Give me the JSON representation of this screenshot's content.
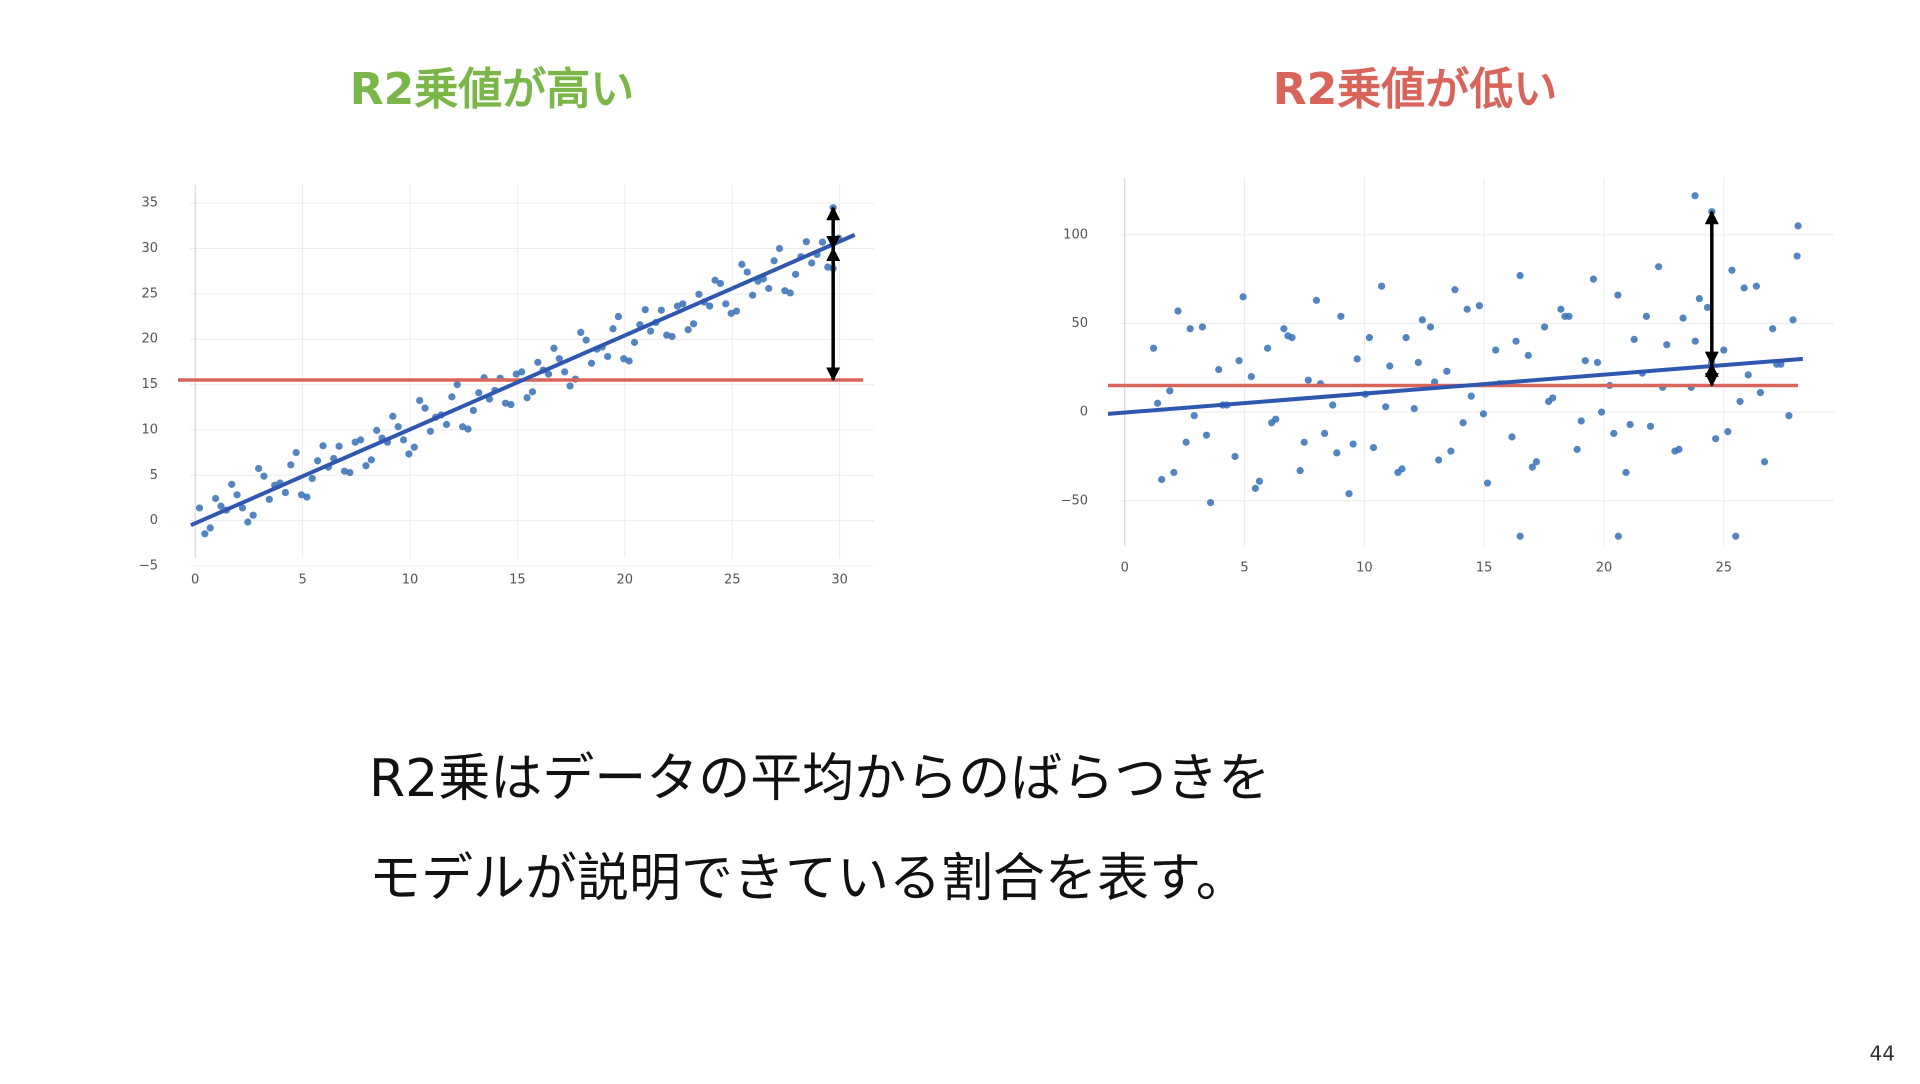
{
  "chart_data": [
    {
      "type": "scatter",
      "title": "R2乗値が高い",
      "title_color": "#7ab648",
      "x": [
        0.2,
        0.7,
        1.2,
        1.7,
        2.2,
        2.7,
        3.2,
        3.7,
        4.2,
        4.7,
        5.2,
        5.7,
        6.2,
        6.7,
        7.2,
        7.7,
        8.2,
        8.7,
        9.2,
        9.7,
        10.2,
        10.7,
        11.2,
        11.7,
        12.2,
        12.7,
        13.2,
        13.7,
        14.2,
        14.7,
        15.2,
        15.7,
        16.2,
        16.7,
        17.2,
        17.7,
        18.2,
        18.7,
        19.2,
        19.7,
        20.2,
        20.7,
        21.2,
        21.7,
        22.2,
        22.7,
        23.2,
        23.7,
        24.2,
        24.7,
        25.2,
        25.7,
        26.2,
        26.7,
        27.2,
        27.7,
        28.2,
        28.7,
        29.2,
        29.7,
        29.7,
        0.45,
        0.95,
        1.45,
        1.95,
        2.45,
        2.95,
        3.45,
        3.95,
        4.45,
        4.95,
        5.45,
        5.95,
        6.45,
        6.95,
        7.45,
        7.95,
        8.45,
        8.95,
        9.45,
        9.95,
        10.45,
        10.95,
        11.45,
        11.95,
        12.45,
        12.95,
        13.45,
        13.95,
        14.45,
        14.95,
        15.45,
        15.95,
        16.45,
        16.95,
        17.45,
        17.95,
        18.45,
        18.95,
        19.45,
        19.95,
        20.45,
        20.95,
        21.45,
        21.95,
        22.45,
        22.95,
        23.45,
        23.95,
        24.45,
        24.95,
        25.45,
        25.95,
        26.45,
        26.95,
        27.45,
        27.95,
        28.45,
        28.95,
        29.45,
        29.95
      ],
      "y": [
        1.4,
        -0.8,
        1.6,
        4.0,
        1.4,
        0.6,
        4.9,
        3.9,
        3.1,
        7.5,
        2.6,
        6.6,
        5.9,
        8.2,
        5.3,
        8.9,
        6.7,
        9.1,
        11.5,
        8.9,
        8.1,
        12.4,
        11.4,
        10.6,
        15.0,
        10.1,
        14.1,
        13.4,
        15.7,
        12.8,
        16.4,
        14.2,
        16.6,
        19.0,
        16.4,
        15.6,
        19.9,
        18.9,
        18.1,
        22.5,
        17.6,
        21.6,
        20.9,
        23.2,
        20.3,
        23.9,
        21.7,
        24.1,
        26.5,
        23.9,
        23.1,
        27.4,
        26.4,
        25.6,
        30.0,
        25.1,
        29.1,
        28.4,
        30.7,
        27.8,
        34.5,
        -1.45,
        2.45,
        1.15,
        2.85,
        -0.15,
        5.75,
        2.35,
        4.15,
        6.15,
        2.85,
        4.65,
        8.25,
        6.85,
        5.45,
        8.65,
        6.05,
        9.95,
        8.65,
        10.35,
        7.35,
        13.25,
        9.85,
        11.65,
        13.65,
        10.35,
        12.15,
        15.75,
        14.35,
        12.95,
        16.15,
        13.55,
        17.45,
        16.15,
        17.85,
        14.85,
        20.75,
        17.35,
        19.15,
        21.15,
        17.85,
        19.65,
        23.25,
        21.85,
        20.45,
        23.65,
        21.05,
        24.95,
        23.65,
        26.15,
        22.85,
        28.25,
        24.85,
        26.65,
        28.65,
        25.35,
        27.15,
        30.75,
        29.35,
        27.95,
        31.15
      ],
      "point_color": "#3a74b8",
      "xlim": [
        -0.8,
        31.6
      ],
      "ylim": [
        -5,
        37
      ],
      "xticks": [
        0,
        5,
        10,
        15,
        20,
        25,
        30
      ],
      "yticks": [
        {
          "value": -5,
          "label": "−5"
        },
        0,
        5,
        10,
        15,
        20,
        25,
        30,
        35
      ],
      "grid": true,
      "regression_line": {
        "x": [
          -0.2,
          30.7
        ],
        "y": [
          -0.5,
          31.5
        ],
        "color": "#2f57b0"
      },
      "mean_line": {
        "x": [
          -0.8,
          31.1
        ],
        "y": 15.5,
        "color": "#d9645a"
      },
      "arrows": {
        "x": 29.7,
        "y": [
          34.5,
          30,
          15.5
        ],
        "color": "#000000"
      }
    },
    {
      "type": "scatter",
      "title": "R2乗値が低い",
      "title_color": "#d9645a",
      "x": [
        1.2,
        1.54,
        1.88,
        2.22,
        2.56,
        2.9,
        3.24,
        3.58,
        3.92,
        4.26,
        4.6,
        4.94,
        5.28,
        5.62,
        5.96,
        6.3,
        6.64,
        6.98,
        7.32,
        7.66,
        8.0,
        8.34,
        8.68,
        9.02,
        9.36,
        9.7,
        10.04,
        10.38,
        10.72,
        11.06,
        11.4,
        11.74,
        12.08,
        12.42,
        12.76,
        13.1,
        13.44,
        13.78,
        14.12,
        14.46,
        14.8,
        15.14,
        15.48,
        15.82,
        16.16,
        16.5,
        16.84,
        17.18,
        17.52,
        17.86,
        18.2,
        18.54,
        18.88,
        19.22,
        19.56,
        19.9,
        20.24,
        20.58,
        20.92,
        21.26,
        21.6,
        21.94,
        22.28,
        22.62,
        22.96,
        23.3,
        23.64,
        23.98,
        24.32,
        24.66,
        25.0,
        25.34,
        25.68,
        26.02,
        26.36,
        26.7,
        27.04,
        27.38,
        27.72,
        28.06,
        1.37,
        2.05,
        2.73,
        3.41,
        4.09,
        4.77,
        5.45,
        6.13,
        6.81,
        7.49,
        8.17,
        8.85,
        9.53,
        10.21,
        10.89,
        11.57,
        12.25,
        12.93,
        13.61,
        14.29,
        14.97,
        15.65,
        16.33,
        17.01,
        17.69,
        18.37,
        19.05,
        19.73,
        20.41,
        21.09,
        21.77,
        22.45,
        23.13,
        23.81,
        24.49,
        25.17,
        25.85,
        26.53,
        27.21,
        27.89,
        23.8,
        24.5,
        16.5,
        20.6,
        25.5,
        28.1
      ],
      "y": [
        36,
        -38,
        12,
        57,
        -17,
        -2,
        48,
        -51,
        24,
        4,
        -25,
        65,
        20,
        -39,
        36,
        -4,
        47,
        42,
        -33,
        18,
        63,
        -12,
        4,
        54,
        -46,
        30,
        10,
        -20,
        71,
        26,
        -34,
        42,
        2,
        52,
        48,
        -27,
        23,
        69,
        -6,
        9,
        60,
        -40,
        35,
        16,
        -14,
        77,
        32,
        -28,
        48,
        8,
        58,
        54,
        -21,
        29,
        75,
        0,
        15,
        66,
        -34,
        41,
        22,
        -8,
        82,
        38,
        -22,
        53,
        14,
        64,
        59,
        -15,
        35,
        80,
        6,
        21,
        71,
        -28,
        47,
        27,
        -2,
        88,
        5,
        -34,
        47,
        -13,
        4,
        29,
        -43,
        -6,
        43,
        -17,
        16,
        -23,
        -18,
        42,
        3,
        -32,
        28,
        17,
        -22,
        58,
        -1,
        16,
        40,
        -31,
        6,
        54,
        -5,
        28,
        -12,
        -7,
        54,
        14,
        -21,
        40,
        28,
        -11,
        70,
        11,
        27,
        52,
        122,
        113,
        -70,
        -70,
        -70,
        105
      ],
      "point_color": "#3a74b8",
      "xlim": [
        -0.7,
        29.6
      ],
      "ylim": [
        -80,
        132
      ],
      "xticks": [
        0,
        5,
        10,
        15,
        20,
        25
      ],
      "yticks": [
        {
          "value": -50,
          "label": "−50"
        },
        0,
        50,
        100
      ],
      "grid": true,
      "regression_line": {
        "x": [
          -0.7,
          28.3
        ],
        "y": [
          -1,
          30
        ],
        "color": "#2f57b0"
      },
      "mean_line": {
        "x": [
          -0.7,
          28.1
        ],
        "y": 15,
        "color": "#d9645a"
      },
      "arrows": {
        "x": 24.5,
        "y": [
          113,
          27,
          15
        ],
        "color": "#000000"
      }
    }
  ],
  "slide": {
    "text": [
      "R2乗はデータの平均からのばらつきを",
      "モデルが説明できている割合を表す。"
    ],
    "page_number": "44"
  }
}
